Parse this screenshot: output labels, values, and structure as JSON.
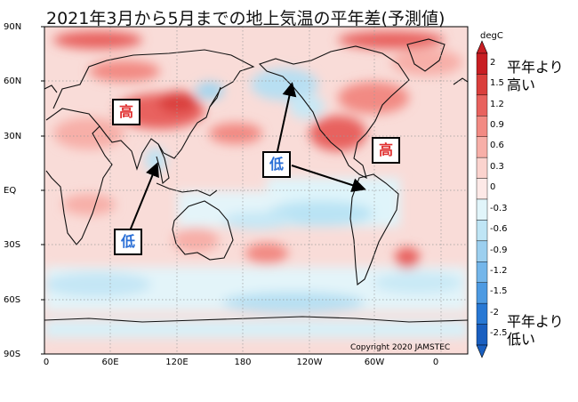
{
  "title": "2021年3月から5月までの地上気温の平年差(予測値)",
  "axes": {
    "y_labels": [
      "90N",
      "60N",
      "30N",
      "EQ",
      "30S",
      "60S",
      "90S"
    ],
    "x_labels": [
      "0",
      "60E",
      "120E",
      "180",
      "120W",
      "60W",
      "0"
    ]
  },
  "colorbar": {
    "unit": "degC",
    "labels": [
      "2",
      "1.5",
      "1.2",
      "0.9",
      "0.6",
      "0.3",
      "0",
      "-0.3",
      "-0.6",
      "-0.9",
      "-1.2",
      "-1.5",
      "-2",
      "-2.5"
    ],
    "colors": [
      "#c81e23",
      "#da3f3c",
      "#e8625e",
      "#f28a83",
      "#f7afa8",
      "#fbd3ce",
      "#fde9e7",
      "#e1f5fa",
      "#bfe5f5",
      "#9ccfef",
      "#74b6ea",
      "#4d9ae2",
      "#2878d4",
      "#1a5fc0"
    ],
    "upper_note": [
      "平年より",
      "高い"
    ],
    "lower_note": [
      "平年より",
      "低い"
    ]
  },
  "annotations": {
    "high": "高",
    "low": "低"
  },
  "copyright": "Copyright 2020 JAMSTEC"
}
